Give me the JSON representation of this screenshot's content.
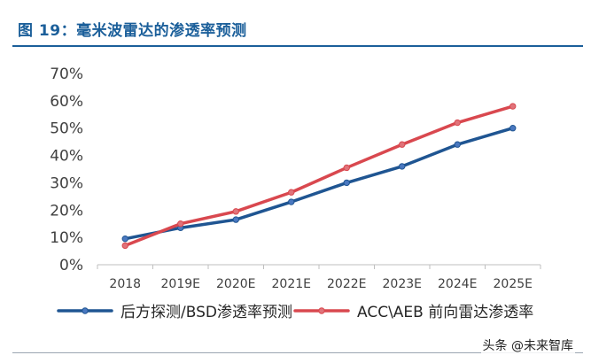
{
  "figure": {
    "title": "图 19：毫米波雷达的渗透率预测"
  },
  "watermark": "头条 @未来智库",
  "chart_data": {
    "type": "line",
    "title": "",
    "xlabel": "",
    "ylabel": "",
    "categories": [
      "2018",
      "2019E",
      "2020E",
      "2021E",
      "2022E",
      "2023E",
      "2024E",
      "2025E"
    ],
    "y_ticks": [
      "0%",
      "10%",
      "20%",
      "30%",
      "40%",
      "50%",
      "60%",
      "70%"
    ],
    "ylim": [
      0,
      70
    ],
    "y_unit": "%",
    "grid": false,
    "legend_position": "bottom",
    "colors": {
      "series_1": "#1f5592",
      "series_2": "#d9484f",
      "axis": "#bfbfbf",
      "title": "#1b5f9a"
    },
    "series": [
      {
        "name": "后方探测/BSD渗透率预测",
        "color": "#1f5592",
        "values": [
          9.5,
          13.5,
          16.5,
          23,
          30,
          36,
          44,
          50
        ]
      },
      {
        "name": "ACC\\AEB 前向雷达渗透率",
        "color": "#d9484f",
        "values": [
          7,
          15,
          19.5,
          26.5,
          35.5,
          44,
          52,
          58
        ]
      }
    ]
  }
}
